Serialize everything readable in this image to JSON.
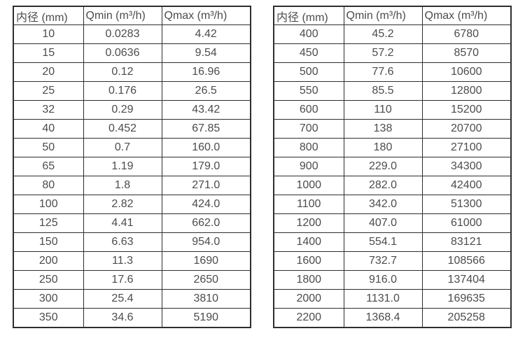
{
  "colors": {
    "background": "#ffffff",
    "border": "#2e2e2e",
    "text": "#4c4c4c"
  },
  "tables": [
    {
      "name": "diameter-flow-table-small",
      "headers": [
        "内径 (mm)",
        "Qmin (m³/h)",
        "Qmax (m³/h)"
      ],
      "rows": [
        [
          "10",
          "0.0283",
          "4.42"
        ],
        [
          "15",
          "0.0636",
          "9.54"
        ],
        [
          "20",
          "0.12",
          "16.96"
        ],
        [
          "25",
          "0.176",
          "26.5"
        ],
        [
          "32",
          "0.29",
          "43.42"
        ],
        [
          "40",
          "0.452",
          "67.85"
        ],
        [
          "50",
          "0.7",
          "160.0"
        ],
        [
          "65",
          "1.19",
          "179.0"
        ],
        [
          "80",
          "1.8",
          "271.0"
        ],
        [
          "100",
          "2.82",
          "424.0"
        ],
        [
          "125",
          "4.41",
          "662.0"
        ],
        [
          "150",
          "6.63",
          "954.0"
        ],
        [
          "200",
          "11.3",
          "1690"
        ],
        [
          "250",
          "17.6",
          "2650"
        ],
        [
          "300",
          "25.4",
          "3810"
        ],
        [
          "350",
          "34.6",
          "5190"
        ]
      ]
    },
    {
      "name": "diameter-flow-table-large",
      "headers": [
        "内径 (mm)",
        "Qmin (m³/h)",
        "Qmax (m³/h)"
      ],
      "rows": [
        [
          "400",
          "45.2",
          "6780"
        ],
        [
          "450",
          "57.2",
          "8570"
        ],
        [
          "500",
          "77.6",
          "10600"
        ],
        [
          "550",
          "85.5",
          "12800"
        ],
        [
          "600",
          "110",
          "15200"
        ],
        [
          "700",
          "138",
          "20700"
        ],
        [
          "800",
          "180",
          "27100"
        ],
        [
          "900",
          "229.0",
          "34300"
        ],
        [
          "1000",
          "282.0",
          "42400"
        ],
        [
          "1100",
          "342.0",
          "51300"
        ],
        [
          "1200",
          "407.0",
          "61000"
        ],
        [
          "1400",
          "554.1",
          "83121"
        ],
        [
          "1600",
          "732.7",
          "108566"
        ],
        [
          "1800",
          "916.0",
          "137404"
        ],
        [
          "2000",
          "1131.0",
          "169635"
        ],
        [
          "2200",
          "1368.4",
          "205258"
        ]
      ]
    }
  ]
}
